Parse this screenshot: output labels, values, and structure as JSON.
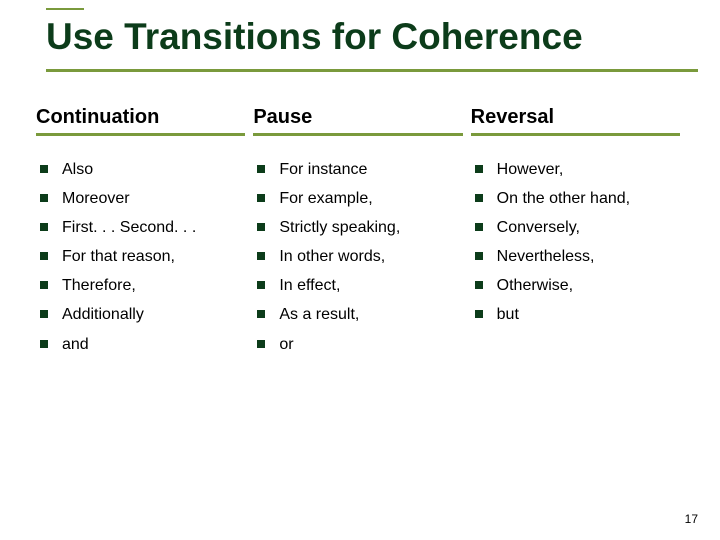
{
  "colors": {
    "accent": "#7a9a3c",
    "title_text": "#0c3c1a",
    "underline": "#7a9a3c",
    "bullet": "#0c3c1a"
  },
  "title": "Use Transitions for Coherence",
  "columns": [
    {
      "heading": "Continuation",
      "items": [
        "Also",
        "Moreover",
        "First. . . Second. . .",
        "For that reason,",
        "Therefore,",
        "Additionally",
        "and"
      ]
    },
    {
      "heading": "Pause",
      "items": [
        "For instance",
        "For example,",
        "Strictly speaking,",
        "In other words,",
        "In effect,",
        "As a result,",
        "or"
      ]
    },
    {
      "heading": "Reversal",
      "items": [
        "However,",
        "On the other hand,",
        "Conversely,",
        "Nevertheless,",
        "Otherwise,",
        "but"
      ]
    }
  ],
  "page_number": "17"
}
